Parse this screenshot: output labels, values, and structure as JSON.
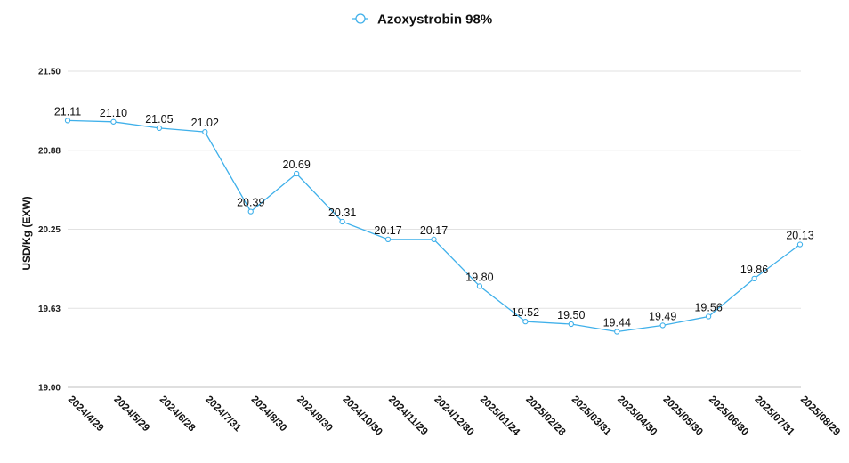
{
  "chart_data": {
    "type": "line",
    "title": "",
    "xlabel": "",
    "ylabel": "USD/Kg   (EXW)",
    "ylim": [
      19.0,
      21.5
    ],
    "yticks": [
      "19.00",
      "19.63",
      "20.25",
      "20.88",
      "21.50"
    ],
    "ytick_values": [
      19.0,
      19.625,
      20.25,
      20.875,
      21.5
    ],
    "grid": true,
    "legend_position": "top-center",
    "categories": [
      "2024/4/29",
      "2024/5/29",
      "2024/6/28",
      "2024/7/31",
      "2024/8/30",
      "2024/9/30",
      "2024/10/30",
      "2024/11/29",
      "2024/12/30",
      "2025/01/24",
      "2025/02/28",
      "2025/03/31",
      "2025/04/30",
      "2025/05/30",
      "2025/06/30",
      "2025/07/31",
      "2025/08/29"
    ],
    "series": [
      {
        "name": "Azoxystrobin 98%",
        "color": "#3fb0ea",
        "values": [
          21.11,
          21.1,
          21.05,
          21.02,
          20.39,
          20.69,
          20.31,
          20.17,
          20.17,
          19.8,
          19.52,
          19.5,
          19.44,
          19.49,
          19.56,
          19.86,
          20.13
        ],
        "labels": [
          "21.11",
          "21.10",
          "21.05",
          "21.02",
          "20.39",
          "20.69",
          "20.31",
          "20.17",
          "20.17",
          "19.80",
          "19.52",
          "19.50",
          "19.44",
          "19.49",
          "19.56",
          "19.86",
          "20.13"
        ]
      }
    ]
  }
}
